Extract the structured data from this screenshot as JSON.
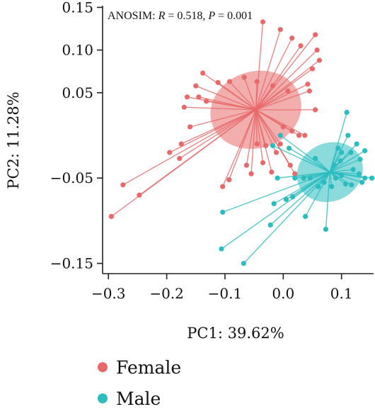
{
  "chart_data": {
    "type": "scatter",
    "xlabel": "PC1: 39.62%",
    "ylabel": "PC2: 11.28%",
    "annotation": {
      "prefix": "ANOSIM: ",
      "r_sym": "R",
      "r_val": " = 0.518, ",
      "p_sym": "P",
      "p_val": " = 0.001"
    },
    "xlim": [
      -0.31,
      0.155
    ],
    "ylim": [
      -0.162,
      0.152
    ],
    "xticks": [
      -0.3,
      -0.2,
      -0.1,
      0.0,
      0.1
    ],
    "xtick_labels": [
      "−0.3",
      "−0.2",
      "−0.1",
      "0.0",
      "0.1"
    ],
    "yticks": [
      0.15,
      0.1,
      0.05,
      -0.05,
      -0.15
    ],
    "ytick_labels": [
      "0.15",
      "0.10",
      "0.05",
      "−0.05",
      "−0.15"
    ],
    "series": [
      {
        "name": "Female",
        "color": "#e8696a",
        "centroid": [
          -0.047,
          0.03
        ],
        "ellipse": {
          "rx": 0.079,
          "ry": 0.045,
          "angle_deg": 17
        },
        "points": [
          [
            -0.035,
            0.133
          ],
          [
            -0.005,
            0.124
          ],
          [
            0.015,
            0.114
          ],
          [
            0.03,
            0.105
          ],
          [
            0.055,
            0.118
          ],
          [
            0.058,
            0.1
          ],
          [
            0.062,
            0.088
          ],
          [
            0.05,
            0.078
          ],
          [
            0.042,
            0.06
          ],
          [
            0.045,
            0.052
          ],
          [
            0.008,
            0.052
          ],
          [
            -0.018,
            0.058
          ],
          [
            -0.045,
            0.063
          ],
          [
            -0.067,
            0.068
          ],
          [
            -0.092,
            0.063
          ],
          [
            -0.112,
            0.062
          ],
          [
            -0.138,
            0.073
          ],
          [
            -0.15,
            0.058
          ],
          [
            -0.145,
            0.045
          ],
          [
            -0.132,
            0.04
          ],
          [
            -0.165,
            0.045
          ],
          [
            -0.17,
            0.033
          ],
          [
            -0.16,
            0.01
          ],
          [
            -0.175,
            -0.01
          ],
          [
            -0.178,
            -0.027
          ],
          [
            -0.195,
            -0.02
          ],
          [
            -0.275,
            -0.058
          ],
          [
            -0.247,
            -0.07
          ],
          [
            -0.295,
            -0.095
          ],
          [
            -0.104,
            -0.06
          ],
          [
            -0.093,
            -0.052
          ],
          [
            -0.063,
            -0.035
          ],
          [
            -0.055,
            -0.045
          ],
          [
            -0.035,
            -0.032
          ],
          [
            -0.02,
            -0.043
          ],
          [
            -0.012,
            -0.02
          ],
          [
            0.0,
            0.01
          ],
          [
            0.015,
            0.005
          ],
          [
            0.027,
            0.0
          ],
          [
            0.037,
            0.0
          ],
          [
            0.012,
            -0.035
          ],
          [
            0.02,
            -0.045
          ],
          [
            -0.005,
            -0.01
          ],
          [
            -0.03,
            -0.012
          ],
          [
            -0.045,
            -0.01
          ],
          [
            0.055,
            0.03
          ]
        ]
      },
      {
        "name": "Male",
        "color": "#2bbcbf",
        "centroid": [
          0.08,
          -0.043
        ],
        "ellipse": {
          "rx": 0.058,
          "ry": 0.034,
          "angle_deg": 25
        },
        "points": [
          [
            0.109,
            0.027
          ],
          [
            0.111,
            0.0
          ],
          [
            0.126,
            -0.01
          ],
          [
            0.14,
            -0.018
          ],
          [
            0.132,
            -0.028
          ],
          [
            0.116,
            -0.02
          ],
          [
            0.1,
            -0.02
          ],
          [
            0.094,
            -0.015
          ],
          [
            0.098,
            -0.03
          ],
          [
            0.088,
            -0.035
          ],
          [
            0.12,
            -0.04
          ],
          [
            0.13,
            -0.045
          ],
          [
            0.14,
            -0.05
          ],
          [
            0.152,
            -0.05
          ],
          [
            0.135,
            -0.055
          ],
          [
            0.117,
            -0.058
          ],
          [
            0.107,
            -0.057
          ],
          [
            0.1,
            -0.047
          ],
          [
            0.09,
            -0.05
          ],
          [
            0.083,
            -0.06
          ],
          [
            0.07,
            -0.055
          ],
          [
            0.06,
            -0.06
          ],
          [
            0.046,
            -0.05
          ],
          [
            0.035,
            -0.05
          ],
          [
            0.02,
            -0.05
          ],
          [
            -0.01,
            -0.05
          ],
          [
            -0.104,
            -0.09
          ],
          [
            -0.016,
            -0.08
          ],
          [
            -0.022,
            -0.105
          ],
          [
            0.038,
            -0.095
          ],
          [
            0.073,
            -0.11
          ],
          [
            -0.106,
            -0.133
          ],
          [
            -0.068,
            -0.15
          ],
          [
            0.005,
            -0.075
          ],
          [
            0.016,
            -0.072
          ],
          [
            0.01,
            -0.015
          ],
          [
            -0.018,
            -0.012
          ],
          [
            -0.005,
            0.0
          ],
          [
            0.055,
            -0.027
          ]
        ]
      }
    ],
    "legend": [
      "Female",
      "Male"
    ],
    "legend_position": "bottom-left",
    "grid": false
  }
}
